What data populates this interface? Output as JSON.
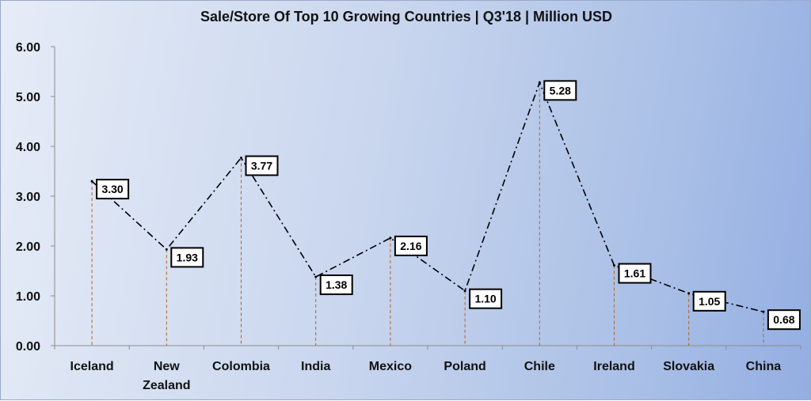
{
  "chart_data": {
    "type": "line",
    "title": "Sale/Store Of Top 10 Growing Countries | Q3'18 | Million USD",
    "categories": [
      [
        "Iceland"
      ],
      [
        "New",
        "Zealand"
      ],
      [
        "Colombia"
      ],
      [
        "India"
      ],
      [
        "Mexico"
      ],
      [
        "Poland"
      ],
      [
        "Chile"
      ],
      [
        "Ireland"
      ],
      [
        "Slovakia"
      ],
      [
        "China"
      ]
    ],
    "values": [
      3.3,
      1.93,
      3.77,
      1.38,
      2.16,
      1.1,
      5.28,
      1.61,
      1.05,
      0.68
    ],
    "value_labels": [
      "3.30",
      "1.93",
      "3.77",
      "1.38",
      "2.16",
      "1.10",
      "5.28",
      "1.61",
      "1.05",
      "0.68"
    ],
    "y_ticks": [
      "0.00",
      "1.00",
      "2.00",
      "3.00",
      "4.00",
      "5.00",
      "6.00"
    ],
    "ylim": [
      0,
      6
    ],
    "xlabel": "",
    "ylabel": "",
    "grid": false,
    "line_style": "dash-dot",
    "line_color": "#000000",
    "drop_line_color": "#b5651d",
    "label_box_border": "#000000",
    "label_box_fill": "#ffffff"
  }
}
